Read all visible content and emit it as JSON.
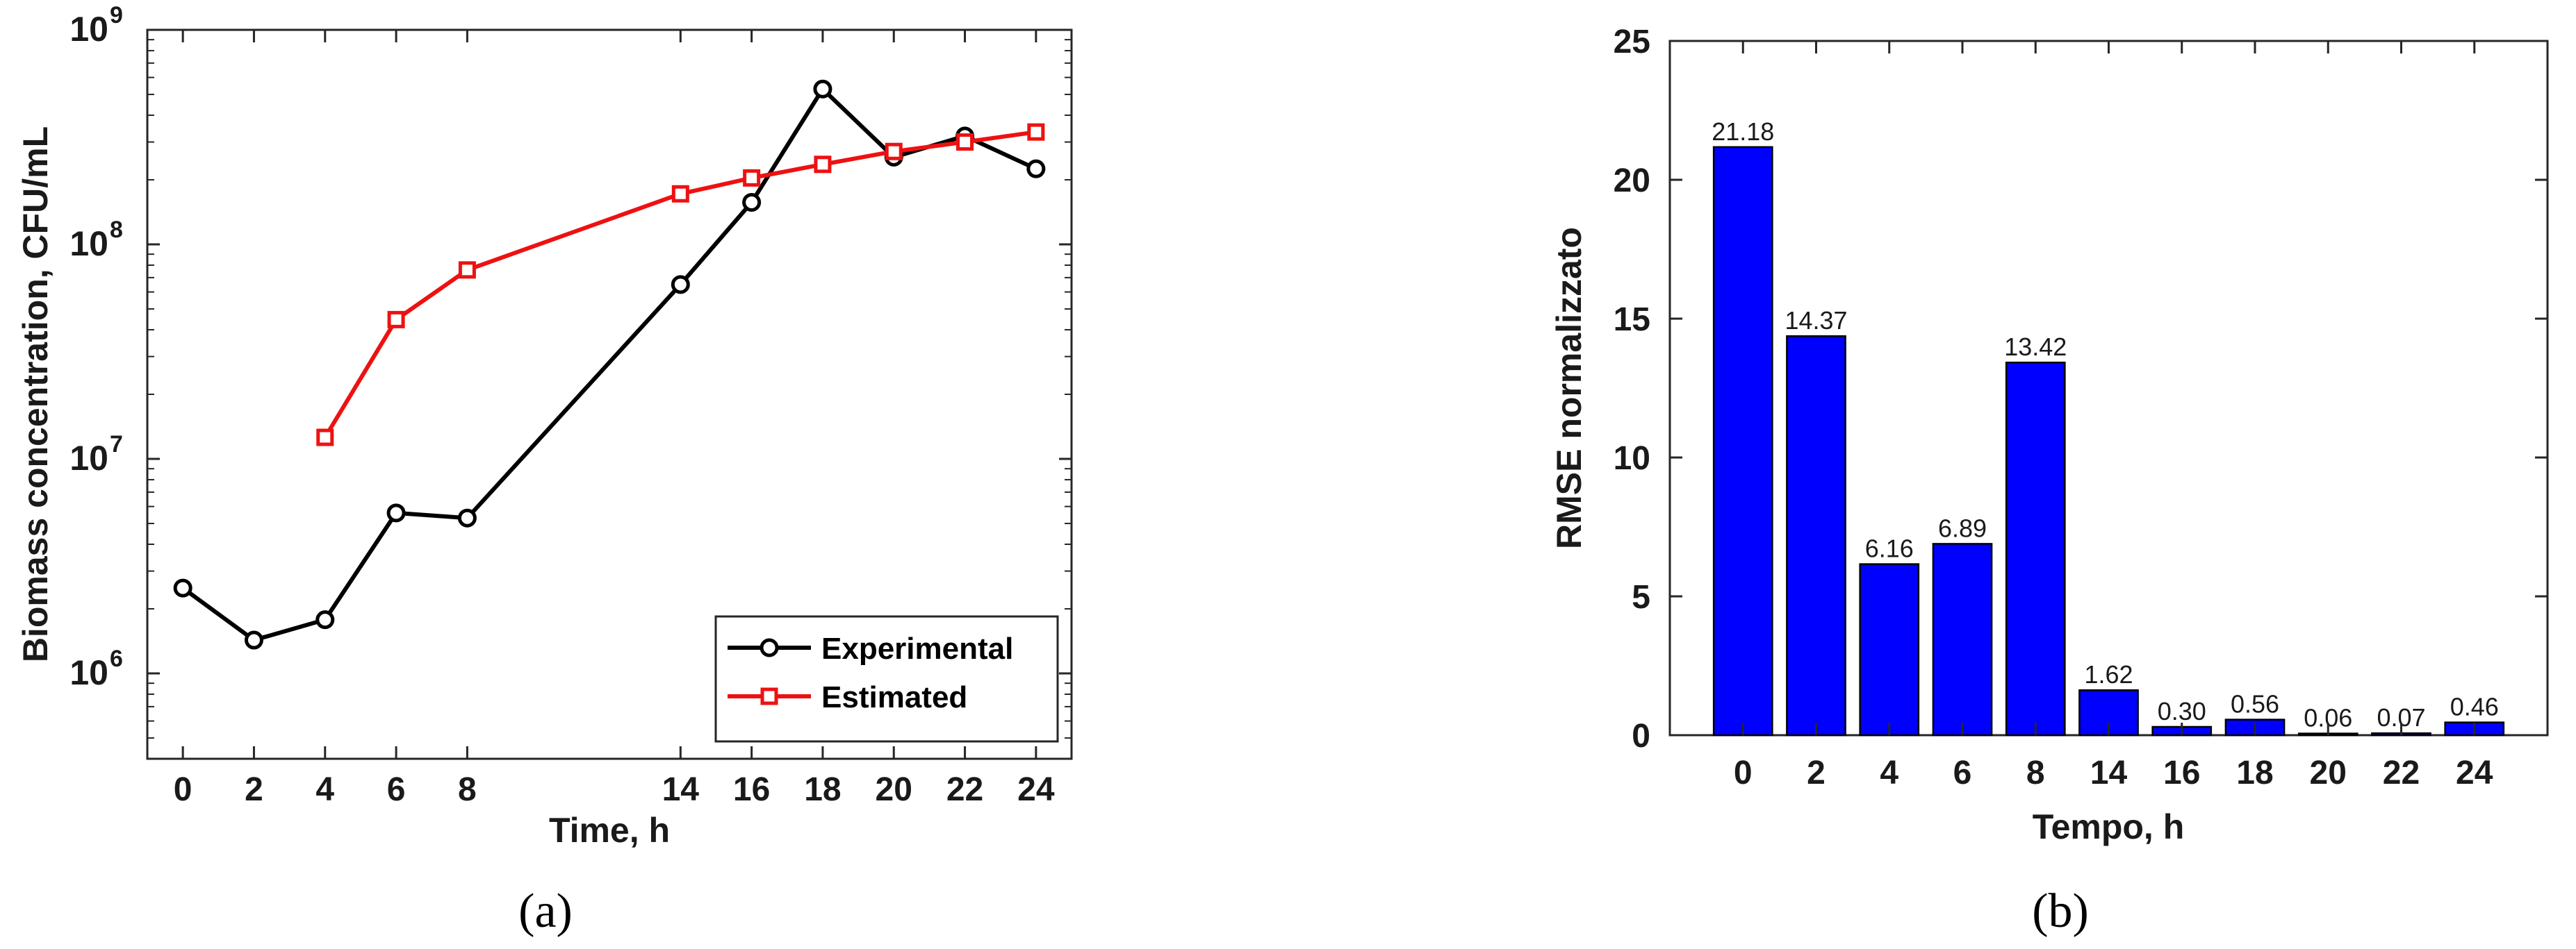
{
  "chart_data": [
    {
      "type": "line",
      "yscale": "log",
      "caption": "(a)",
      "xlabel": "Time, h",
      "ylabel": "Biomass concentration, CFU/mL",
      "xlim": [
        -1,
        25
      ],
      "ylim": [
        400000,
        1000000000
      ],
      "xticks": [
        0,
        2,
        4,
        6,
        8,
        14,
        16,
        18,
        20,
        22,
        24
      ],
      "yticks": [
        {
          "value": 1000000,
          "base": "10",
          "exp": "6"
        },
        {
          "value": 10000000,
          "base": "10",
          "exp": "7"
        },
        {
          "value": 100000000,
          "base": "10",
          "exp": "8"
        },
        {
          "value": 1000000000,
          "base": "10",
          "exp": "9"
        }
      ],
      "legend_position": "bottom-right",
      "series": [
        {
          "name": "Experimental",
          "color": "#000000",
          "marker": "circle",
          "x": [
            0,
            2,
            4,
            6,
            8,
            14,
            16,
            18,
            20,
            22,
            24
          ],
          "y": [
            2500000,
            1430000,
            1780000,
            5600000,
            5300000,
            65000000,
            157000000,
            530000000,
            255000000,
            320000000,
            225000000
          ]
        },
        {
          "name": "Estimated",
          "color": "#ee1111",
          "marker": "square",
          "x": [
            4,
            6,
            8,
            14,
            16,
            18,
            20,
            22,
            24
          ],
          "y": [
            12600000,
            44600000,
            76000000,
            172000000,
            204000000,
            236000000,
            271000000,
            300000000,
            334000000
          ]
        }
      ]
    },
    {
      "type": "bar",
      "caption": "(b)",
      "xlabel": "Tempo, h",
      "ylabel": "RMSE normalizzato",
      "ylim": [
        0,
        25
      ],
      "yticks": [
        0,
        5,
        10,
        15,
        20,
        25
      ],
      "bar_color": "#0000ff",
      "categories": [
        "0",
        "2",
        "4",
        "6",
        "8",
        "14",
        "16",
        "18",
        "20",
        "22",
        "24"
      ],
      "values": [
        21.18,
        14.37,
        6.16,
        6.89,
        13.42,
        1.62,
        0.3,
        0.56,
        0.06,
        0.07,
        0.46
      ],
      "value_labels": [
        "21.18",
        "14.37",
        "6.16",
        "6.89",
        "13.42",
        "1.62",
        "0.30",
        "0.56",
        "0.06",
        "0.07",
        "0.46"
      ]
    }
  ]
}
